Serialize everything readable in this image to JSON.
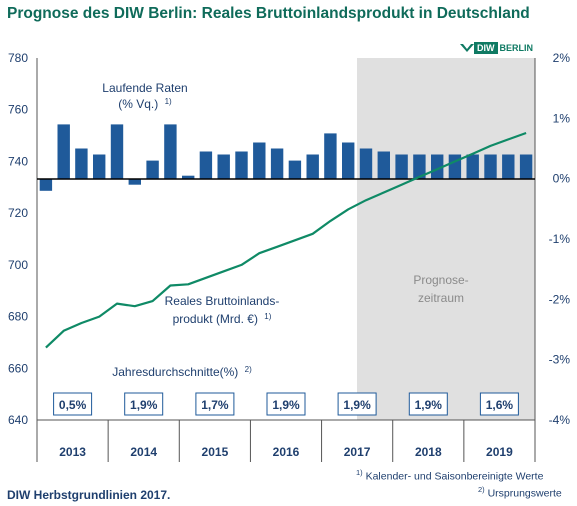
{
  "title": "Prognose des DIW Berlin: Reales Bruttoinlandsprodukt in Deutschland",
  "logo": {
    "brand": "DIW",
    "suffix": "BERLIN"
  },
  "chart_data": {
    "type": "bar+line",
    "forecast_label": [
      "Prognose-",
      "zeitraum"
    ],
    "forecast_start_quarter_index": 20,
    "years": [
      "2013",
      "2014",
      "2015",
      "2016",
      "2017",
      "2018",
      "2019"
    ],
    "left_axis": {
      "ticks": [
        640,
        660,
        680,
        700,
        720,
        740,
        760,
        780
      ],
      "range": [
        640,
        780
      ]
    },
    "right_axis": {
      "ticks": [
        "2%",
        "1%",
        "0%",
        "-1%",
        "-2%",
        "-3%",
        "-4%"
      ],
      "values": [
        2,
        1,
        0,
        -1,
        -2,
        -3,
        -4
      ],
      "range": [
        -4,
        2
      ]
    },
    "bars_series": {
      "name": "Laufende Raten",
      "name_line2": "(% Vq.)",
      "note": "1)",
      "axis": "right",
      "unit": "%",
      "color": "#1f5a9a",
      "values": [
        -0.2,
        0.9,
        0.5,
        0.4,
        0.9,
        -0.1,
        0.3,
        0.9,
        0.05,
        0.45,
        0.4,
        0.45,
        0.6,
        0.5,
        0.3,
        0.4,
        0.75,
        0.6,
        0.5,
        0.45,
        0.4,
        0.4,
        0.4,
        0.4,
        0.4,
        0.4,
        0.4,
        0.4
      ]
    },
    "line_series": {
      "name": "Reales Bruttoinlands-",
      "name_line2": "produkt (Mrd. €)",
      "note": "1)",
      "axis": "left",
      "unit": "Mrd. €",
      "color": "#0f8a66",
      "values": [
        668,
        674.5,
        677.5,
        680,
        685,
        684,
        686,
        692,
        692.5,
        695,
        697.5,
        700,
        704.5,
        707,
        709.5,
        712,
        717,
        721.5,
        725,
        728,
        731,
        734,
        737,
        740,
        743,
        746,
        748.5,
        751
      ]
    },
    "annual_label": "Jahresdurchschnitte(%)",
    "annual_note": "2)",
    "annual_values": [
      "0,5%",
      "1,9%",
      "1,7%",
      "1,9%",
      "1,9%",
      "1,9%",
      "1,6%"
    ]
  },
  "footnotes": [
    {
      "marker": "1)",
      "text": " Kalender- und Saisonbereinigte Werte"
    },
    {
      "marker": "2)",
      "text": " Ursprungswerte"
    }
  ],
  "source": "DIW Herbstgrundlinien 2017."
}
